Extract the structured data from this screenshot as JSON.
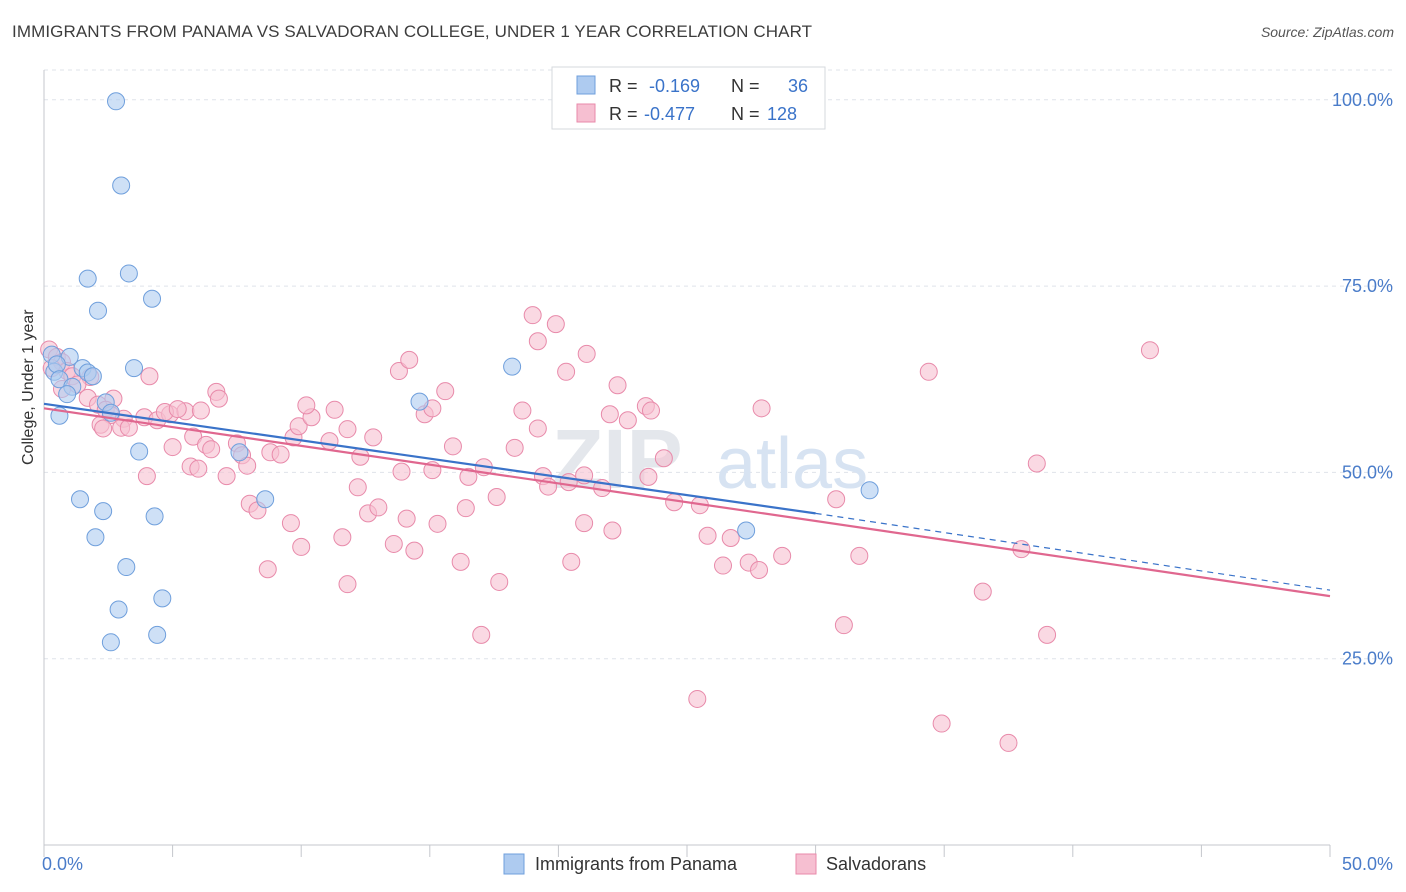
{
  "header": {
    "title": "IMMIGRANTS FROM PANAMA VS SALVADORAN COLLEGE, UNDER 1 YEAR CORRELATION CHART",
    "source": "Source: ZipAtlas.com"
  },
  "colors": {
    "blue_fill": "#aecbf0",
    "blue_stroke": "#6f9fdc",
    "blue_line": "#3a73c9",
    "pink_fill": "#f6bfd1",
    "pink_stroke": "#e88aaa",
    "pink_line": "#e0678f",
    "tick_label": "#4a7cc9",
    "grid": "#dfe3ea"
  },
  "watermark": {
    "part1": "ZIP",
    "part2": "atlas"
  },
  "chart_data": {
    "type": "scatter",
    "title": "IMMIGRANTS FROM PANAMA VS SALVADORAN COLLEGE, UNDER 1 YEAR CORRELATION CHART",
    "xlabel": "",
    "ylabel": "College, Under 1 year",
    "xlim": [
      0,
      50
    ],
    "ylim": [
      0,
      104
    ],
    "x_tick_labels": [
      "0.0%",
      "50.0%"
    ],
    "y_ticks": [
      25,
      50,
      75,
      100
    ],
    "y_tick_labels": [
      "25.0%",
      "50.0%",
      "75.0%",
      "100.0%"
    ],
    "grid": true,
    "legend_position": "top-center",
    "legend": [
      {
        "r_label": "R =",
        "r_value": "-0.169",
        "n_label": "N =",
        "n_value": "36"
      },
      {
        "r_label": "R =",
        "r_value": "-0.477",
        "n_label": "N =",
        "n_value": "128"
      }
    ],
    "series": [
      {
        "name": "Immigrants from Panama",
        "color": "#aecbf0",
        "trend": {
          "x0": 0,
          "y0": 59.2,
          "x1": 30,
          "y1": 44.5,
          "dash_to_x": 50,
          "dash_to_y": 34.2
        },
        "points": [
          [
            2.8,
            99.8
          ],
          [
            3.0,
            88.5
          ],
          [
            1.7,
            76
          ],
          [
            3.3,
            76.7
          ],
          [
            4.2,
            73.3
          ],
          [
            2.1,
            71.7
          ],
          [
            0.3,
            65.8
          ],
          [
            1.0,
            65.5
          ],
          [
            0.4,
            63.5
          ],
          [
            0.5,
            64.5
          ],
          [
            1.5,
            64
          ],
          [
            3.5,
            64
          ],
          [
            18.2,
            64.2
          ],
          [
            1.7,
            63.4
          ],
          [
            1.9,
            62.9
          ],
          [
            0.6,
            62.5
          ],
          [
            1.1,
            61.5
          ],
          [
            0.9,
            60.5
          ],
          [
            2.4,
            59.4
          ],
          [
            14.6,
            59.5
          ],
          [
            2.6,
            58
          ],
          [
            0.6,
            57.6
          ],
          [
            3.7,
            52.8
          ],
          [
            7.6,
            52.7
          ],
          [
            8.6,
            46.4
          ],
          [
            1.4,
            46.4
          ],
          [
            2.3,
            44.8
          ],
          [
            4.3,
            44.1
          ],
          [
            27.3,
            42.2
          ],
          [
            2.0,
            41.3
          ],
          [
            3.2,
            37.3
          ],
          [
            4.6,
            33.1
          ],
          [
            2.9,
            31.6
          ],
          [
            4.4,
            28.2
          ],
          [
            2.6,
            27.2
          ],
          [
            32.1,
            47.6
          ]
        ]
      },
      {
        "name": "Salvadorans",
        "color": "#f6bfd1",
        "trend": {
          "x0": 0,
          "y0": 58.6,
          "x1": 50,
          "y1": 33.4
        },
        "points": [
          [
            0.2,
            66.5
          ],
          [
            0.5,
            65.5
          ],
          [
            0.7,
            64.8
          ],
          [
            0.3,
            64.0
          ],
          [
            0.9,
            63.6
          ],
          [
            1.1,
            62.9
          ],
          [
            1.8,
            62.8
          ],
          [
            1.3,
            61.8
          ],
          [
            0.7,
            61.2
          ],
          [
            1.7,
            60.0
          ],
          [
            2.7,
            59.9
          ],
          [
            2.1,
            59.1
          ],
          [
            2.4,
            58.4
          ],
          [
            2.6,
            57.7
          ],
          [
            3.1,
            57.2
          ],
          [
            2.2,
            56.4
          ],
          [
            3.0,
            56.0
          ],
          [
            3.3,
            56.0
          ],
          [
            2.3,
            55.9
          ],
          [
            4.1,
            62.9
          ],
          [
            3.9,
            57.4
          ],
          [
            4.4,
            57.0
          ],
          [
            4.9,
            57.8
          ],
          [
            4.7,
            58.1
          ],
          [
            5.5,
            58.2
          ],
          [
            6.1,
            58.3
          ],
          [
            6.7,
            60.8
          ],
          [
            6.8,
            59.9
          ],
          [
            5.2,
            58.5
          ],
          [
            5.8,
            54.8
          ],
          [
            6.3,
            53.7
          ],
          [
            5.0,
            53.4
          ],
          [
            6.5,
            53.1
          ],
          [
            5.7,
            50.8
          ],
          [
            7.5,
            53.9
          ],
          [
            7.7,
            52.3
          ],
          [
            7.1,
            49.5
          ],
          [
            8.8,
            52.7
          ],
          [
            7.9,
            50.9
          ],
          [
            9.7,
            54.7
          ],
          [
            9.9,
            56.2
          ],
          [
            10.4,
            57.4
          ],
          [
            10.2,
            59.0
          ],
          [
            11.1,
            54.2
          ],
          [
            11.3,
            58.4
          ],
          [
            11.8,
            55.8
          ],
          [
            12.3,
            52.1
          ],
          [
            12.8,
            54.7
          ],
          [
            13.8,
            63.6
          ],
          [
            14.2,
            65.1
          ],
          [
            14.8,
            57.8
          ],
          [
            15.1,
            58.6
          ],
          [
            15.6,
            60.9
          ],
          [
            15.9,
            53.5
          ],
          [
            16.5,
            49.4
          ],
          [
            17.1,
            50.7
          ],
          [
            17.6,
            46.7
          ],
          [
            18.3,
            53.3
          ],
          [
            18.6,
            58.3
          ],
          [
            19.0,
            71.1
          ],
          [
            19.2,
            67.6
          ],
          [
            19.4,
            49.5
          ],
          [
            19.6,
            48.1
          ],
          [
            19.9,
            69.9
          ],
          [
            19.2,
            55.9
          ],
          [
            20.3,
            63.5
          ],
          [
            20.4,
            48.7
          ],
          [
            21.0,
            49.6
          ],
          [
            21.1,
            65.9
          ],
          [
            21.7,
            47.9
          ],
          [
            22.3,
            61.7
          ],
          [
            22.0,
            57.8
          ],
          [
            22.7,
            57.0
          ],
          [
            23.4,
            58.9
          ],
          [
            23.6,
            58.3
          ],
          [
            23.5,
            49.4
          ],
          [
            24.1,
            51.9
          ],
          [
            24.5,
            46.0
          ],
          [
            25.5,
            45.6
          ],
          [
            25.8,
            41.5
          ],
          [
            26.4,
            37.5
          ],
          [
            26.7,
            41.2
          ],
          [
            27.4,
            37.9
          ],
          [
            27.8,
            36.9
          ],
          [
            27.9,
            58.6
          ],
          [
            28.7,
            38.8
          ],
          [
            30.8,
            46.4
          ],
          [
            31.1,
            29.5
          ],
          [
            31.7,
            38.8
          ],
          [
            34.4,
            63.5
          ],
          [
            25.4,
            19.6
          ],
          [
            34.9,
            16.3
          ],
          [
            36.5,
            34.0
          ],
          [
            37.5,
            13.7
          ],
          [
            38.0,
            39.7
          ],
          [
            38.6,
            51.2
          ],
          [
            39.0,
            28.2
          ],
          [
            43.0,
            66.4
          ],
          [
            6.0,
            50.5
          ],
          [
            4.0,
            49.5
          ],
          [
            9.6,
            43.2
          ],
          [
            10.0,
            40.0
          ],
          [
            11.6,
            41.3
          ],
          [
            11.8,
            35.0
          ],
          [
            12.2,
            48.0
          ],
          [
            12.6,
            44.5
          ],
          [
            13.0,
            45.3
          ],
          [
            13.6,
            40.4
          ],
          [
            13.9,
            50.1
          ],
          [
            14.1,
            43.8
          ],
          [
            14.4,
            39.5
          ],
          [
            15.1,
            50.3
          ],
          [
            15.3,
            43.1
          ],
          [
            16.2,
            38.0
          ],
          [
            16.4,
            45.2
          ],
          [
            17.0,
            28.2
          ],
          [
            17.7,
            35.3
          ],
          [
            20.5,
            38.0
          ],
          [
            21.0,
            43.2
          ],
          [
            22.1,
            42.2
          ],
          [
            8.0,
            45.8
          ],
          [
            8.3,
            44.9
          ],
          [
            8.7,
            37.0
          ],
          [
            9.2,
            52.4
          ]
        ]
      }
    ]
  }
}
